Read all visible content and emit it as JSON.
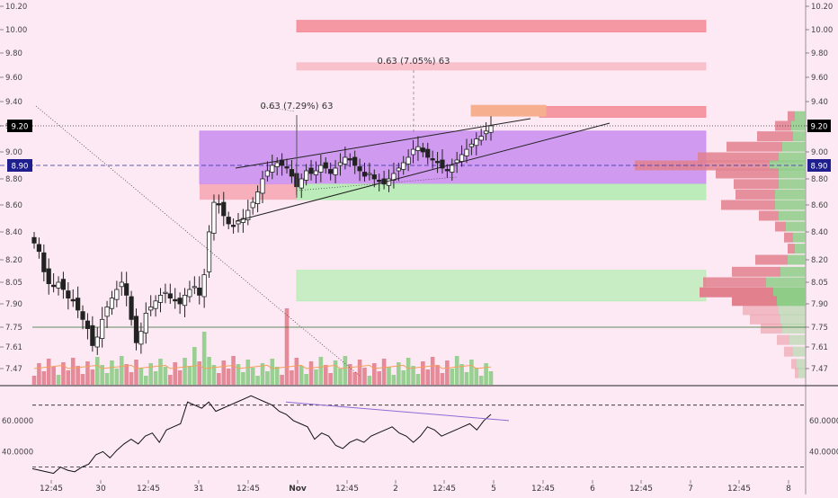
{
  "chart_data": [
    {
      "type": "candlestick",
      "title": "",
      "price_axis": {
        "ticks": [
          "10.20",
          "10.00",
          "9.80",
          "9.60",
          "9.40",
          "9.20",
          "9.00",
          "8.80",
          "8.60",
          "8.40",
          "8.20",
          "8.05",
          "7.90",
          "7.75",
          "7.61",
          "7.47"
        ],
        "ylim": [
          7.35,
          10.24
        ],
        "current_price": "9.20",
        "reference_price": "8.90",
        "reference_level_2": "7.75"
      },
      "time_axis": {
        "ticks": [
          "12:45",
          "30",
          "12:45",
          "31",
          "12:45",
          "Nov",
          "12:45",
          "2",
          "12:45",
          "5",
          "12:45",
          "6",
          "12:45",
          "7",
          "12:45",
          "8"
        ],
        "bold_tick": "Nov"
      },
      "annotations": [
        {
          "type": "measure",
          "label": "0.63 (7.29%) 63"
        },
        {
          "type": "measure",
          "label": "0.63 (7.05%) 63"
        }
      ],
      "zones": [
        {
          "kind": "supply",
          "color": "#f48a95",
          "range": [
            9.98,
            10.08
          ]
        },
        {
          "kind": "supply",
          "color": "#f7bcc8",
          "range": [
            9.66,
            9.72
          ]
        },
        {
          "kind": "supply",
          "color": "#f48a95",
          "range": [
            9.27,
            9.36
          ]
        },
        {
          "kind": "marker",
          "color": "#f7b08f",
          "range": [
            9.28,
            9.37
          ]
        },
        {
          "kind": "range-box",
          "color": "#c98cf0",
          "range": [
            8.76,
            9.16
          ]
        },
        {
          "kind": "demand",
          "color": "#b5ecb3",
          "range": [
            8.64,
            8.76
          ]
        },
        {
          "kind": "demand",
          "color": "#b5ecb3",
          "range": [
            7.92,
            8.13
          ]
        }
      ],
      "series_close": [
        8.32,
        8.26,
        8.12,
        8.04,
        8.02,
        8.05,
        8.0,
        7.94,
        7.92,
        7.86,
        7.8,
        7.74,
        7.62,
        7.68,
        7.8,
        7.88,
        7.94,
        8.0,
        8.05,
        7.96,
        7.8,
        7.64,
        7.72,
        7.84,
        7.88,
        7.92,
        7.96,
        7.98,
        7.94,
        7.92,
        7.9,
        7.96,
        8.0,
        8.02,
        7.96,
        8.1,
        8.4,
        8.62,
        8.6,
        8.52,
        8.46,
        8.44,
        8.48,
        8.5,
        8.56,
        8.62,
        8.7,
        8.8,
        8.86,
        8.9,
        8.92,
        8.9,
        8.88,
        8.82,
        8.74,
        8.8,
        8.86,
        8.84,
        8.86,
        8.9,
        8.88,
        8.84,
        8.88,
        8.92,
        8.96,
        8.94,
        8.9,
        8.86,
        8.82,
        8.84,
        8.8,
        8.78,
        8.76,
        8.8,
        8.84,
        8.88,
        8.92,
        8.96,
        9.02,
        9.04,
        9.0,
        8.96,
        8.94,
        8.92,
        8.88,
        8.86,
        8.9,
        8.94,
        8.98,
        9.02,
        9.06,
        9.1,
        9.12,
        9.16,
        9.2
      ]
    },
    {
      "type": "line",
      "panel": "oscillator",
      "ticks": [
        "60.0000",
        "40.0000"
      ],
      "ylim": [
        24,
        82
      ],
      "levels": [
        70,
        30
      ],
      "values": [
        29,
        28,
        27,
        26,
        30,
        28,
        27,
        30,
        32,
        38,
        40,
        36,
        41,
        45,
        48,
        45,
        50,
        52,
        46,
        54,
        56,
        58,
        72,
        70,
        68,
        72,
        66,
        68,
        70,
        72,
        74,
        76,
        74,
        72,
        70,
        66,
        64,
        60,
        58,
        56,
        48,
        52,
        50,
        44,
        42,
        46,
        48,
        46,
        50,
        52,
        54,
        56,
        52,
        50,
        46,
        50,
        56,
        54,
        50,
        52,
        54,
        56,
        58,
        54,
        60,
        64
      ],
      "trendline_start": 72,
      "trendline_end": 60
    }
  ]
}
